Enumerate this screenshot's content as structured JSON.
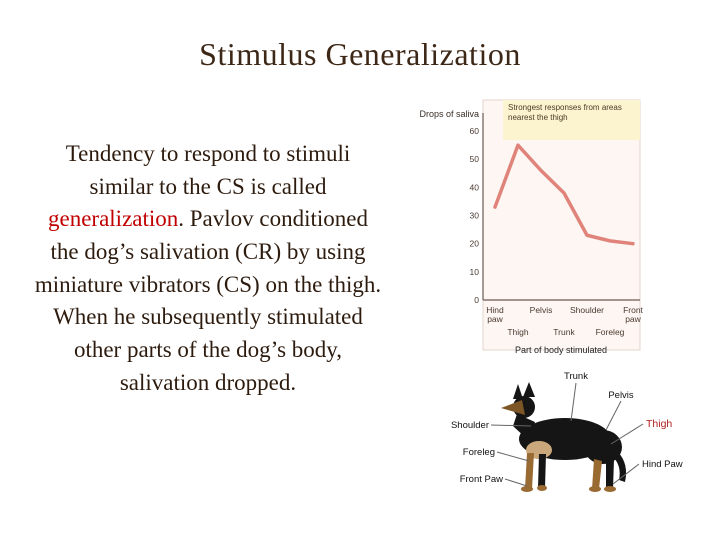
{
  "colors": {
    "title_text": "#3d2817",
    "body_text": "#2d1b0e",
    "highlight_text": "#c00000",
    "chart_line": "#e0837b",
    "annotation_bg": "#fcf3cf",
    "thigh_label": "#b02020"
  },
  "slide": {
    "title": "Stimulus Generalization",
    "body": {
      "pre": "Tendency to respond to stimuli similar to the CS is called ",
      "highlight": "generalization",
      "post": ". Pavlov conditioned the dog’s salivation (CR) by using miniature vibrators (CS) on the thigh. When he subsequently stimulated other parts of the dog’s body, salivation dropped."
    }
  },
  "chart_data": {
    "type": "line",
    "title": "",
    "ylabel": "Drops of saliva",
    "xlabel": "Part of body stimulated",
    "annotation": "Strongest responses from areas nearest the thigh",
    "categories": [
      "Hind paw",
      "Thigh",
      "Pelvis",
      "Trunk",
      "Shoulder",
      "Foreleg",
      "Front paw"
    ],
    "values": [
      33,
      55,
      46,
      38,
      23,
      21,
      20
    ],
    "x_ticks": [
      {
        "lines": [
          "Hind",
          "paw"
        ],
        "row": 1
      },
      {
        "lines": [
          "Thigh"
        ],
        "row": 2
      },
      {
        "lines": [
          "Pelvis"
        ],
        "row": 1
      },
      {
        "lines": [
          "Trunk"
        ],
        "row": 2
      },
      {
        "lines": [
          "Shoulder"
        ],
        "row": 1
      },
      {
        "lines": [
          "Foreleg"
        ],
        "row": 2
      },
      {
        "lines": [
          "Front",
          "paw"
        ],
        "row": 1
      }
    ],
    "yticks": [
      60,
      50,
      40,
      30,
      20,
      10,
      0
    ],
    "ylim": [
      0,
      65
    ],
    "grid": false,
    "line_color": "#e0837b"
  },
  "dog_diagram": {
    "labels": {
      "trunk": "Trunk",
      "pelvis": "Pelvis",
      "thigh": "Thigh",
      "shoulder": "Shoulder",
      "foreleg": "Foreleg",
      "hind_paw": "Hind Paw",
      "front_paw": "Front Paw"
    }
  }
}
